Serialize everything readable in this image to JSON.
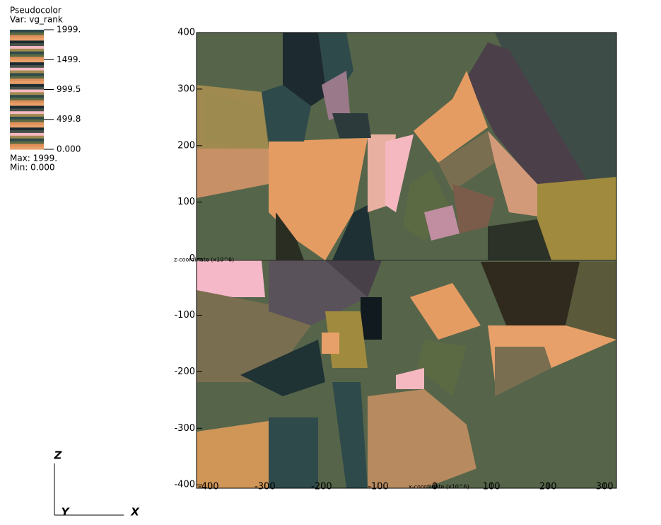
{
  "chart_data": {
    "type": "pseudocolor",
    "plot_title": "Pseudocolor",
    "variable": "Var: vg_rank",
    "legend_ticks": [
      {
        "value": 1999,
        "label": "1999."
      },
      {
        "value": 1499,
        "label": "1499."
      },
      {
        "value": 999.5,
        "label": "999.5"
      },
      {
        "value": 499.8,
        "label": "499.8"
      },
      {
        "value": 0,
        "label": "0.000"
      }
    ],
    "legend_range": [
      0,
      1999
    ],
    "max_label": "Max:  1999.",
    "min_label": "Min:  0.000",
    "palette": [
      "#2f4a4a",
      "#e8a06a",
      "#f5b8c0",
      "#5c6a44",
      "#1c2a30",
      "#a08a50",
      "#e0905a",
      "#48524a"
    ],
    "xlabel": "x-coordinate (x10^6)",
    "ylabel": "z-coordinate (x10^6)",
    "xlim": [
      -421,
      321
    ],
    "ylim": [
      -406,
      400
    ],
    "xticks": [
      -400,
      -300,
      -200,
      -100,
      0,
      100,
      200,
      300
    ],
    "yticks": [
      -400,
      -300,
      -200,
      -100,
      0,
      100,
      200,
      300,
      400
    ],
    "triad": [
      "Z",
      "Y",
      "X"
    ]
  }
}
